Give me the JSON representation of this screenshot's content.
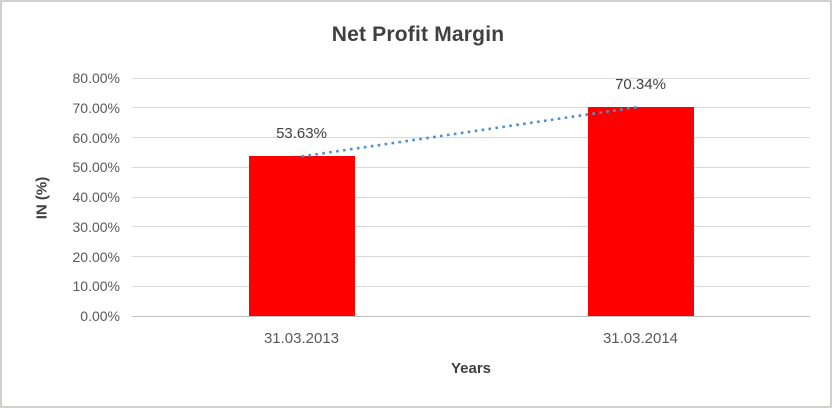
{
  "chart_data": {
    "type": "bar",
    "title": "Net Profit Margin",
    "xlabel": "Years",
    "ylabel": "IN (%)",
    "categories": [
      "31.03.2013",
      "31.03.2014"
    ],
    "values": [
      53.63,
      70.34
    ],
    "data_labels": [
      "53.63%",
      "70.34%"
    ],
    "ylim": [
      0,
      80
    ],
    "yticks": [
      {
        "value": 0,
        "label": "0.00%"
      },
      {
        "value": 10,
        "label": "10.00%"
      },
      {
        "value": 20,
        "label": "20.00%"
      },
      {
        "value": 30,
        "label": "30.00%"
      },
      {
        "value": 40,
        "label": "40.00%"
      },
      {
        "value": 50,
        "label": "50.00%"
      },
      {
        "value": 60,
        "label": "60.00%"
      },
      {
        "value": 70,
        "label": "70.00%"
      },
      {
        "value": 80,
        "label": "80.00%"
      }
    ],
    "grid": true,
    "legend": "none",
    "trendline": {
      "type": "linear",
      "style": "dotted"
    },
    "colors": {
      "bar": "#ff0000",
      "trendline": "#4a90d2",
      "gridline": "#d9d9d9",
      "axis_line": "#bfbfbf",
      "tick_text": "#595959",
      "title_text": "#404040",
      "border": "#d2cfcf"
    }
  }
}
